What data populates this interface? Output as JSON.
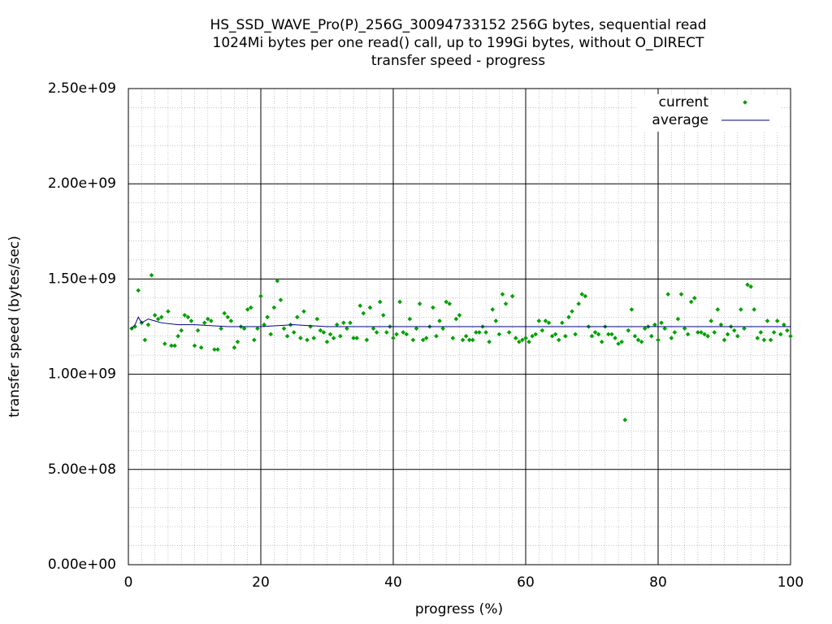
{
  "chart_data": {
    "type": "scatter",
    "title": [
      "HS_SSD_WAVE_Pro(P)_256G_30094733152 256G bytes, sequential read",
      "1024Mi bytes per one read() call, up to 199Gi bytes, without O_DIRECT",
      "transfer speed - progress"
    ],
    "x_label": "progress (%)",
    "y_label": "transfer speed (bytes/sec)",
    "xlim": [
      0,
      100
    ],
    "xticks": [
      0,
      20,
      40,
      60,
      80,
      100
    ],
    "ylim": [
      0,
      2500000000
    ],
    "yticks": [
      {
        "value": 0,
        "label": "0.00e+00"
      },
      {
        "value": 500000000,
        "label": "5.00e+08"
      },
      {
        "value": 1000000000,
        "label": "1.00e+09"
      },
      {
        "value": 1500000000,
        "label": "1.50e+09"
      },
      {
        "value": 2000000000,
        "label": "2.00e+09"
      },
      {
        "value": 2500000000,
        "label": "2.50e+09"
      }
    ],
    "grid": true,
    "minor_grid": true,
    "legend": "top-right",
    "series": [
      {
        "name": "current",
        "color": "#00a000",
        "style": "points",
        "x": [
          0.5,
          1,
          1.5,
          2,
          2.5,
          3,
          3.5,
          4,
          4.5,
          5,
          5.5,
          6,
          6.5,
          7,
          7.5,
          8,
          8.5,
          9,
          9.5,
          10,
          10.5,
          11,
          11.5,
          12,
          12.5,
          13,
          13.5,
          14,
          14.5,
          15,
          15.5,
          16,
          16.5,
          17,
          17.5,
          18,
          18.5,
          19,
          19.5,
          20,
          20.5,
          21,
          21.5,
          22,
          22.5,
          23,
          23.5,
          24,
          24.5,
          25,
          25.5,
          26,
          26.5,
          27,
          27.5,
          28,
          28.5,
          29,
          29.5,
          30,
          30.5,
          31,
          31.5,
          32,
          32.5,
          33,
          33.5,
          34,
          34.5,
          35,
          35.5,
          36,
          36.5,
          37,
          37.5,
          38,
          38.5,
          39,
          39.5,
          40,
          40.5,
          41,
          41.5,
          42,
          42.5,
          43,
          43.5,
          44,
          44.5,
          45,
          45.5,
          46,
          46.5,
          47,
          47.5,
          48,
          48.5,
          49,
          49.5,
          50,
          50.5,
          51,
          51.5,
          52,
          52.5,
          53,
          53.5,
          54,
          54.5,
          55,
          55.5,
          56,
          56.5,
          57,
          57.5,
          58,
          58.5,
          59,
          59.5,
          60,
          60.5,
          61,
          61.5,
          62,
          62.5,
          63,
          63.5,
          64,
          64.5,
          65,
          65.5,
          66,
          66.5,
          67,
          67.5,
          68,
          68.5,
          69,
          69.5,
          70,
          70.5,
          71,
          71.5,
          72,
          72.5,
          73,
          73.5,
          74,
          74.5,
          75,
          75.5,
          76,
          76.5,
          77,
          77.5,
          78,
          78.5,
          79,
          79.5,
          80,
          80.5,
          81,
          81.5,
          82,
          82.5,
          83,
          83.5,
          84,
          84.5,
          85,
          85.5,
          86,
          86.5,
          87,
          87.5,
          88,
          88.5,
          89,
          89.5,
          90,
          90.5,
          91,
          91.5,
          92,
          92.5,
          93,
          93.5,
          94,
          94.5,
          95,
          95.5,
          96,
          96.5,
          97,
          97.5,
          98,
          98.5,
          99,
          99.5,
          100
        ],
        "values": [
          1240000000.0,
          1250000000.0,
          1440000000.0,
          1270000000.0,
          1180000000.0,
          1260000000.0,
          1520000000.0,
          1310000000.0,
          1290000000.0,
          1300000000.0,
          1160000000.0,
          1330000000.0,
          1150000000.0,
          1150000000.0,
          1200000000.0,
          1230000000.0,
          1310000000.0,
          1300000000.0,
          1280000000.0,
          1150000000.0,
          1230000000.0,
          1140000000.0,
          1270000000.0,
          1290000000.0,
          1280000000.0,
          1130000000.0,
          1130000000.0,
          1240000000.0,
          1320000000.0,
          1300000000.0,
          1280000000.0,
          1140000000.0,
          1170000000.0,
          1250000000.0,
          1240000000.0,
          1340000000.0,
          1350000000.0,
          1180000000.0,
          1240000000.0,
          1410000000.0,
          1260000000.0,
          1300000000.0,
          1210000000.0,
          1350000000.0,
          1490000000.0,
          1390000000.0,
          1240000000.0,
          1200000000.0,
          1260000000.0,
          1220000000.0,
          1300000000.0,
          1190000000.0,
          1330000000.0,
          1180000000.0,
          1250000000.0,
          1190000000.0,
          1290000000.0,
          1230000000.0,
          1220000000.0,
          1170000000.0,
          1210000000.0,
          1190000000.0,
          1260000000.0,
          1200000000.0,
          1270000000.0,
          1240000000.0,
          1270000000.0,
          1190000000.0,
          1190000000.0,
          1360000000.0,
          1320000000.0,
          1180000000.0,
          1350000000.0,
          1240000000.0,
          1220000000.0,
          1380000000.0,
          1310000000.0,
          1220000000.0,
          1250000000.0,
          1190000000.0,
          1210000000.0,
          1380000000.0,
          1220000000.0,
          1210000000.0,
          1290000000.0,
          1180000000.0,
          1240000000.0,
          1370000000.0,
          1180000000.0,
          1190000000.0,
          1250000000.0,
          1350000000.0,
          1200000000.0,
          1280000000.0,
          1240000000.0,
          1380000000.0,
          1370000000.0,
          1190000000.0,
          1290000000.0,
          1310000000.0,
          1180000000.0,
          1200000000.0,
          1180000000.0,
          1180000000.0,
          1220000000.0,
          1220000000.0,
          1250000000.0,
          1220000000.0,
          1170000000.0,
          1340000000.0,
          1280000000.0,
          1210000000.0,
          1420000000.0,
          1370000000.0,
          1220000000.0,
          1410000000.0,
          1190000000.0,
          1170000000.0,
          1180000000.0,
          1190000000.0,
          1170000000.0,
          1200000000.0,
          1210000000.0,
          1280000000.0,
          1230000000.0,
          1280000000.0,
          1270000000.0,
          1200000000.0,
          1210000000.0,
          1180000000.0,
          1270000000.0,
          1200000000.0,
          1300000000.0,
          1330000000.0,
          1210000000.0,
          1370000000.0,
          1420000000.0,
          1410000000.0,
          1250000000.0,
          1200000000.0,
          1220000000.0,
          1210000000.0,
          1170000000.0,
          1250000000.0,
          1210000000.0,
          1210000000.0,
          1190000000.0,
          1160000000.0,
          1170000000.0,
          760000000.0,
          1230000000.0,
          1340000000.0,
          1200000000.0,
          1180000000.0,
          1170000000.0,
          1240000000.0,
          1250000000.0,
          1200000000.0,
          1260000000.0,
          1180000000.0,
          1270000000.0,
          1240000000.0,
          1420000000.0,
          1190000000.0,
          1220000000.0,
          1290000000.0,
          1420000000.0,
          1240000000.0,
          1210000000.0,
          1380000000.0,
          1400000000.0,
          1220000000.0,
          1220000000.0,
          1210000000.0,
          1200000000.0,
          1280000000.0,
          1220000000.0,
          1340000000.0,
          1260000000.0,
          1180000000.0,
          1210000000.0,
          1250000000.0,
          1230000000.0,
          1200000000.0,
          1340000000.0,
          1240000000.0,
          1470000000.0,
          1460000000.0,
          1340000000.0,
          1190000000.0,
          1220000000.0,
          1180000000.0,
          1280000000.0,
          1180000000.0,
          1220000000.0,
          1280000000.0,
          1210000000.0,
          1260000000.0,
          1230000000.0,
          1200000000.0
        ]
      },
      {
        "name": "average",
        "color": "#000080",
        "style": "line",
        "x": [
          0.5,
          1,
          1.5,
          2,
          3,
          4,
          5,
          7.5,
          10,
          15,
          20,
          25,
          30,
          40,
          50,
          60,
          70,
          80,
          90,
          100
        ],
        "values": [
          1240000000.0,
          1260000000.0,
          1300000000.0,
          1270000000.0,
          1290000000.0,
          1280000000.0,
          1270000000.0,
          1260000000.0,
          1260000000.0,
          1250000000.0,
          1250000000.0,
          1260000000.0,
          1250000000.0,
          1250000000.0,
          1250000000.0,
          1250000000.0,
          1250000000.0,
          1250000000.0,
          1250000000.0,
          1250000000.0
        ]
      }
    ]
  }
}
